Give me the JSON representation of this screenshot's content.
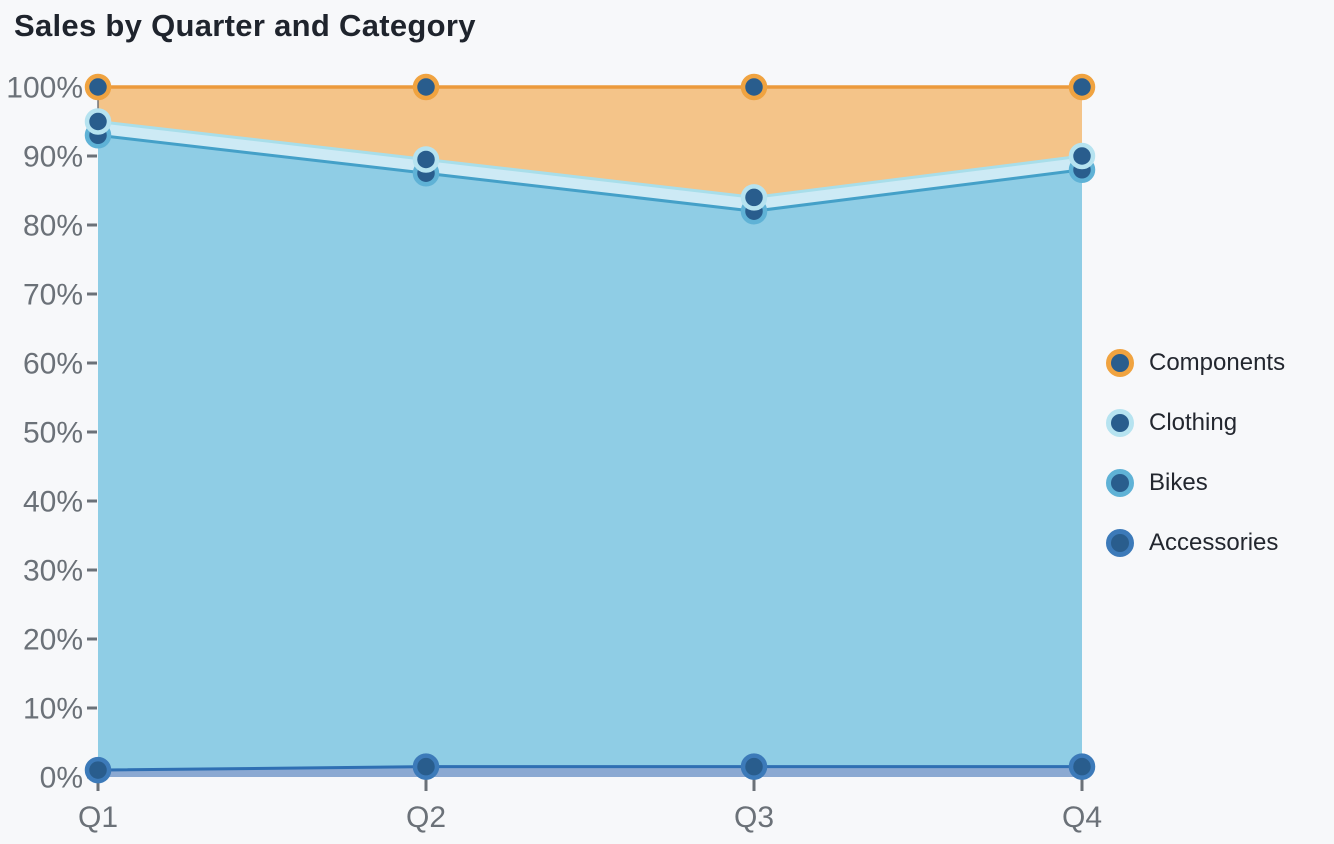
{
  "title": "Sales by Quarter and Category",
  "colors": {
    "background": "#F7F8FA",
    "title_text": "#1F242D",
    "axis_text": "#6B7178",
    "tick": "#6B7178",
    "axis_line": "#5A626C",
    "marker_fill": "#295D8D",
    "legend_text": "#23272F"
  },
  "chart_data": {
    "type": "area",
    "variant": "100%-stacked",
    "title": "Sales by Quarter and Category",
    "categories": [
      "Q1",
      "Q2",
      "Q3",
      "Q4"
    ],
    "series": [
      {
        "name": "Accessories",
        "values": [
          1,
          1.5,
          1.5,
          1.5
        ],
        "cumulative": [
          1,
          1.5,
          1.5,
          1.5
        ],
        "line_color": "#2F6FB3",
        "fill_color": "#8BA9D2",
        "marker_ring_color": "#3C7AB9",
        "line_width": 3
      },
      {
        "name": "Bikes",
        "values": [
          92,
          86,
          80.5,
          86.5
        ],
        "cumulative": [
          93,
          87.5,
          82,
          88
        ],
        "line_color": "#44A0C8",
        "fill_color": "#8FCDE5",
        "marker_ring_color": "#5FB2D6",
        "line_width": 3
      },
      {
        "name": "Clothing",
        "values": [
          2,
          2,
          2,
          2
        ],
        "cumulative": [
          95,
          89.5,
          84,
          90
        ],
        "line_color": "#A8DEEA",
        "fill_color": "#CDEAF5",
        "marker_ring_color": "#B6E3F0",
        "line_width": 3
      },
      {
        "name": "Components",
        "values": [
          5,
          10.5,
          16,
          10
        ],
        "cumulative": [
          100,
          100,
          100,
          100
        ],
        "line_color": "#EC9A3C",
        "fill_color": "#F4C489",
        "marker_ring_color": "#F0A340",
        "line_width": 3.5
      }
    ],
    "y_axis": {
      "min": 0,
      "max": 100,
      "tick_step": 10,
      "tick_labels": [
        "0%",
        "10%",
        "20%",
        "30%",
        "40%",
        "50%",
        "60%",
        "70%",
        "80%",
        "90%",
        "100%"
      ]
    },
    "x_axis": {
      "labels": [
        "Q1",
        "Q2",
        "Q3",
        "Q4"
      ]
    },
    "grid": false,
    "legend": {
      "position": "right",
      "items": [
        {
          "label": "Components"
        },
        {
          "label": "Clothing"
        },
        {
          "label": "Bikes"
        },
        {
          "label": "Accessories"
        }
      ]
    }
  }
}
